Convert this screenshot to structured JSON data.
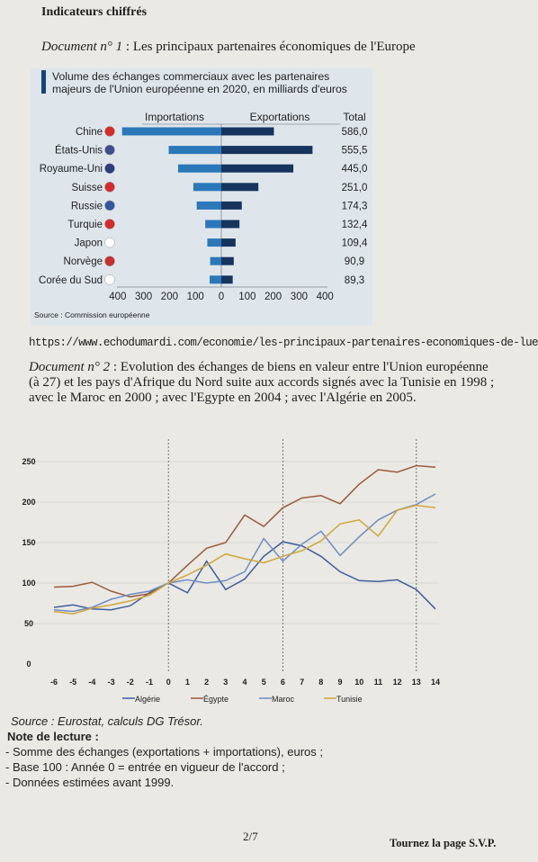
{
  "header": {
    "title": "Indicateurs chiffrés"
  },
  "doc1": {
    "prefix": "Document  n° 1",
    "heading": " : Les principaux partenaires économiques de l'Europe",
    "url": "https://www.echodumardi.com/economie/les-principaux-partenaires-economiques-de-lue/"
  },
  "doc2": {
    "prefix": "Document  n° 2",
    "heading": " : Evolution des échanges de biens en valeur entre l'Union européenne (à 27) et les pays d'Afrique du Nord suite aux accords signés avec la Tunisie en 1998 ; avec le Maroc en 2000 ; avec l'Egypte en 2004 ; avec l'Algérie en 2005."
  },
  "notes": {
    "source": "Source : Eurostat, calculs DG Trésor.",
    "heading": "Note de lecture :",
    "lines": [
      "- Somme des échanges (exportations + importations), euros ;",
      "- Base 100 : Année 0 = entrée en vigueur de l'accord ;",
      "- Données estimées avant 1999."
    ]
  },
  "footer": {
    "page": "2/7",
    "turn": "Tournez la page S.V.P."
  },
  "colors": {
    "imports": "#2a78b8",
    "exports": "#16345e",
    "algerie": "#3d5e9e",
    "egypte": "#9c5b3c",
    "maroc": "#6e8dc4",
    "tunisie": "#d2a63a"
  },
  "chart_data": [
    {
      "type": "bar",
      "title": "Volume des échanges commerciaux avec les partenaires majeurs de l'Union européenne en 2020, en milliards d'euros",
      "column_headers": {
        "imports": "Importations",
        "exports": "Exportations",
        "total": "Total"
      },
      "categories": [
        "Chine",
        "États-Unis",
        "Royaume-Uni",
        "Suisse",
        "Russie",
        "Turquie",
        "Japon",
        "Norvège",
        "Corée du Sud"
      ],
      "flag_icons": [
        "china-flag-icon",
        "usa-flag-icon",
        "uk-flag-icon",
        "switzerland-flag-icon",
        "russia-flag-icon",
        "turkey-flag-icon",
        "japan-flag-icon",
        "norway-flag-icon",
        "south-korea-flag-icon"
      ],
      "series": [
        {
          "name": "Importations",
          "values": [
            383,
            203,
            167,
            108,
            95,
            62,
            54,
            43,
            45
          ]
        },
        {
          "name": "Exportations",
          "values": [
            203,
            352,
            278,
            143,
            79,
            70,
            55,
            48,
            44
          ]
        }
      ],
      "totals": [
        "586,0",
        "555,5",
        "445,0",
        "251,0",
        "174,3",
        "132,4",
        "109,4",
        "90,9",
        "89,3"
      ],
      "xticks": [
        "400",
        "300",
        "200",
        "100",
        "0",
        "100",
        "200",
        "300",
        "400"
      ],
      "xlim": [
        -400,
        400
      ],
      "source": "Source : Commission européenne"
    },
    {
      "type": "line",
      "x": [
        -6,
        -5,
        -4,
        -3,
        -2,
        -1,
        0,
        1,
        2,
        3,
        4,
        5,
        6,
        7,
        8,
        9,
        10,
        11,
        12,
        13,
        14
      ],
      "xticks": [
        "-6",
        "-5",
        "-4",
        "-3",
        "-2",
        "-1",
        "0",
        "1",
        "2",
        "3",
        "4",
        "5",
        "6",
        "7",
        "8",
        "9",
        "10",
        "11",
        "12",
        "13",
        "14"
      ],
      "yticks": [
        "0",
        "50",
        "100",
        "150",
        "200",
        "250"
      ],
      "ylim": [
        0,
        250
      ],
      "grid": true,
      "vlines": [
        0,
        6,
        13
      ],
      "legend_position": "bottom",
      "series": [
        {
          "name": "Algérie",
          "color": "#3d5e9e",
          "values": [
            70,
            73,
            68,
            67,
            72,
            88,
            100,
            88,
            127,
            92,
            105,
            133,
            151,
            146,
            133,
            114,
            103,
            102,
            104,
            92,
            68
          ]
        },
        {
          "name": "Égypte",
          "color": "#9c5b3c",
          "values": [
            95,
            96,
            101,
            90,
            83,
            87,
            100,
            122,
            143,
            150,
            184,
            170,
            193,
            205,
            208,
            198,
            222,
            240,
            237,
            245,
            243
          ]
        },
        {
          "name": "Maroc",
          "color": "#6e8dc4",
          "values": [
            67,
            65,
            70,
            80,
            86,
            90,
            100,
            104,
            100,
            103,
            114,
            155,
            127,
            148,
            164,
            134,
            157,
            178,
            190,
            197,
            210
          ]
        },
        {
          "name": "Tunisie",
          "color": "#d2a63a",
          "values": [
            65,
            62,
            69,
            73,
            78,
            85,
            100,
            110,
            122,
            136,
            130,
            125,
            133,
            140,
            152,
            173,
            178,
            158,
            190,
            196,
            193
          ]
        }
      ]
    }
  ]
}
